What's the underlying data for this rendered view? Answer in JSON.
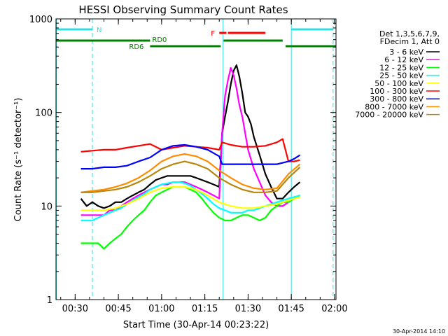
{
  "chart_data": {
    "type": "line",
    "title": "HESSI Observing Summary Count Rates",
    "xlabel": "Start Time (30-Apr-14 00:23:22)",
    "ylabel": "Count Rate (s⁻¹ detector⁻¹)",
    "y_scale": "log",
    "ylim": [
      1,
      1000
    ],
    "xlim": [
      "00:23:22",
      "02:00:30"
    ],
    "x_ticks": [
      "00:30",
      "00:45",
      "01:00",
      "01:15",
      "01:30",
      "01:45",
      "02:00"
    ],
    "y_ticks": [
      "1",
      "10",
      "100",
      "1000"
    ],
    "grid": false,
    "legend_position": "right",
    "legend_header": [
      "Det 1,3,5,6,7,9,",
      "FDecim 1, Att 0"
    ],
    "footer": "30-Apr-2014 14:10",
    "annotations": {
      "night_label": "N",
      "flare_label": "F",
      "rd0_label": "RD0",
      "rd6_label": "RD6"
    },
    "markers": {
      "night_intervals": [
        [
          "00:23:22",
          "00:36:00"
        ],
        [
          "01:45:00",
          "01:59:30"
        ]
      ],
      "night_dashed_lines": [
        "00:36:00",
        "01:59:30"
      ],
      "saa_lines": [
        "00:23:30",
        "01:21:20",
        "01:45:00"
      ],
      "flare_interval": [
        "01:20:00",
        "01:22:30"
      ],
      "flare_interval_2": [
        "01:23:00",
        "01:36:00"
      ],
      "rd0_intervals": [
        [
          "00:23:22",
          "00:56:00"
        ],
        [
          "01:21:30",
          "01:42:00"
        ]
      ],
      "rd6_intervals": [
        [
          "00:56:00",
          "01:20:30"
        ],
        [
          "01:43:00",
          "02:00:30"
        ]
      ]
    },
    "series": [
      {
        "name": "3 - 6 keV",
        "color": "#000000",
        "x": [
          "00:32",
          "00:34",
          "00:36",
          "00:38",
          "00:40",
          "00:42",
          "00:44",
          "00:46",
          "00:48",
          "00:50",
          "00:52",
          "00:54",
          "00:56",
          "00:58",
          "01:00",
          "01:02",
          "01:04",
          "01:06",
          "01:08",
          "01:10",
          "01:12",
          "01:14",
          "01:16",
          "01:18",
          "01:20",
          "01:21",
          "01:22",
          "01:23",
          "01:24",
          "01:25",
          "01:26",
          "01:27",
          "01:28",
          "01:29",
          "01:30",
          "01:31",
          "01:32",
          "01:34",
          "01:36",
          "01:38",
          "01:40",
          "01:42",
          "01:44",
          "01:46",
          "01:48"
        ],
        "values": [
          12,
          10,
          11,
          10,
          9.5,
          10,
          11,
          11,
          12,
          13,
          14,
          15,
          17,
          19,
          20,
          21,
          21,
          21,
          21,
          21,
          20,
          19,
          18,
          17,
          16,
          60,
          90,
          130,
          200,
          280,
          320,
          240,
          160,
          100,
          90,
          75,
          55,
          35,
          22,
          16,
          12,
          12,
          14,
          16,
          18
        ]
      },
      {
        "name": "6 - 12 keV",
        "color": "#ff00ff",
        "x": [
          "00:32",
          "00:34",
          "00:36",
          "00:38",
          "00:40",
          "00:42",
          "00:44",
          "00:46",
          "00:48",
          "00:50",
          "00:52",
          "00:54",
          "00:56",
          "00:58",
          "01:00",
          "01:02",
          "01:04",
          "01:06",
          "01:08",
          "01:10",
          "01:12",
          "01:14",
          "01:16",
          "01:18",
          "01:20",
          "01:21",
          "01:22",
          "01:23",
          "01:24",
          "01:25",
          "01:26",
          "01:27",
          "01:28",
          "01:29",
          "01:30",
          "01:32",
          "01:34",
          "01:36",
          "01:38",
          "01:40",
          "01:42",
          "01:44",
          "01:46",
          "01:48"
        ],
        "values": [
          8,
          8,
          8,
          8,
          8,
          9,
          9,
          10,
          11,
          12,
          13,
          14,
          15,
          16,
          17,
          17,
          18,
          18,
          18,
          17,
          16,
          15,
          14,
          13,
          12,
          60,
          150,
          220,
          300,
          250,
          180,
          120,
          90,
          60,
          40,
          25,
          18,
          13,
          11,
          10,
          10,
          11,
          12,
          13
        ]
      },
      {
        "name": "12 - 25 keV",
        "color": "#00ff00",
        "x": [
          "00:32",
          "00:34",
          "00:36",
          "00:38",
          "00:40",
          "00:42",
          "00:44",
          "00:46",
          "00:48",
          "00:50",
          "00:52",
          "00:54",
          "00:56",
          "00:58",
          "01:00",
          "01:02",
          "01:04",
          "01:06",
          "01:08",
          "01:10",
          "01:12",
          "01:14",
          "01:16",
          "01:18",
          "01:20",
          "01:22",
          "01:24",
          "01:26",
          "01:28",
          "01:30",
          "01:32",
          "01:34",
          "01:36",
          "01:38",
          "01:40",
          "01:42",
          "01:44",
          "01:46",
          "01:48"
        ],
        "values": [
          4,
          4,
          4,
          4,
          3.5,
          4,
          4.5,
          5,
          6,
          7,
          8,
          9,
          11,
          13,
          14,
          15,
          16,
          16,
          16,
          15,
          14,
          12,
          10,
          8.5,
          7.5,
          7,
          7,
          7.5,
          8,
          8,
          7.5,
          7,
          7.5,
          9,
          10,
          11,
          11,
          12,
          13
        ]
      },
      {
        "name": "25 - 50 keV",
        "color": "#00ffff",
        "x": [
          "00:32",
          "00:34",
          "00:36",
          "00:38",
          "00:40",
          "00:42",
          "00:44",
          "00:46",
          "00:48",
          "00:50",
          "00:52",
          "00:54",
          "00:56",
          "00:58",
          "01:00",
          "01:02",
          "01:04",
          "01:06",
          "01:08",
          "01:10",
          "01:12",
          "01:14",
          "01:16",
          "01:18",
          "01:20",
          "01:22",
          "01:24",
          "01:26",
          "01:28",
          "01:30",
          "01:32",
          "01:34",
          "01:36",
          "01:38",
          "01:40",
          "01:42",
          "01:44",
          "01:46",
          "01:48"
        ],
        "values": [
          7,
          7,
          7,
          7.5,
          8,
          8.5,
          9,
          9.5,
          10.5,
          11.5,
          12.5,
          13.5,
          15,
          16,
          17,
          17.5,
          18,
          18,
          17.5,
          16.5,
          15,
          13.5,
          12,
          10.5,
          9.5,
          9,
          8.5,
          8.5,
          8.5,
          9,
          9,
          9.5,
          10,
          10.5,
          11,
          11.5,
          12,
          12.5,
          13
        ]
      },
      {
        "name": "50 - 100 keV",
        "color": "#ffff00",
        "x": [
          "00:32",
          "00:36",
          "00:40",
          "00:44",
          "00:48",
          "00:52",
          "00:56",
          "01:00",
          "01:04",
          "01:08",
          "01:12",
          "01:16",
          "01:20",
          "01:24",
          "01:28",
          "01:32",
          "01:36",
          "01:40",
          "01:44",
          "01:48"
        ],
        "values": [
          9,
          9,
          9,
          9.5,
          10.5,
          12,
          14,
          15.5,
          16,
          16,
          15,
          13,
          11,
          10,
          9.5,
          9.5,
          10,
          10.5,
          11.5,
          12.5
        ]
      },
      {
        "name": "100 - 300 keV",
        "color": "#ff0000",
        "x": [
          "00:32",
          "00:36",
          "00:40",
          "00:44",
          "00:48",
          "00:52",
          "00:56",
          "01:00",
          "01:04",
          "01:08",
          "01:12",
          "01:16",
          "01:20",
          "01:21",
          "01:24",
          "01:28",
          "01:32",
          "01:36",
          "01:40",
          "01:42",
          "01:44",
          "01:46",
          "01:48"
        ],
        "values": [
          38,
          39,
          40,
          40,
          42,
          44,
          46,
          40,
          42,
          44,
          43,
          42,
          40,
          48,
          45,
          43,
          43,
          44,
          48,
          52,
          30,
          30,
          31
        ]
      },
      {
        "name": "300 - 800 keV",
        "color": "#0000ff",
        "x": [
          "00:32",
          "00:36",
          "00:40",
          "00:44",
          "00:48",
          "00:52",
          "00:56",
          "01:00",
          "01:04",
          "01:08",
          "01:12",
          "01:16",
          "01:20",
          "01:21",
          "01:24",
          "01:28",
          "01:32",
          "01:36",
          "01:40",
          "01:44",
          "01:46",
          "01:48"
        ],
        "values": [
          25,
          25,
          26,
          26,
          27,
          30,
          33,
          40,
          44,
          45,
          43,
          40,
          34,
          28,
          28,
          28,
          28,
          28,
          28,
          30,
          32,
          35
        ]
      },
      {
        "name": "800 - 7000 keV",
        "color": "#ff8c00",
        "x": [
          "00:32",
          "00:36",
          "00:40",
          "00:44",
          "00:48",
          "00:52",
          "00:56",
          "01:00",
          "01:04",
          "01:08",
          "01:12",
          "01:16",
          "01:20",
          "01:24",
          "01:28",
          "01:32",
          "01:36",
          "01:40",
          "01:44",
          "01:48"
        ],
        "values": [
          14,
          14.5,
          15,
          16,
          17.5,
          20,
          24,
          30,
          34,
          36,
          34,
          30,
          24,
          20,
          17,
          15.5,
          15,
          15.5,
          22,
          28
        ]
      },
      {
        "name": "7000 - 20000 keV",
        "color": "#b8860b",
        "x": [
          "00:32",
          "00:36",
          "00:40",
          "00:44",
          "00:48",
          "00:52",
          "00:56",
          "01:00",
          "01:04",
          "01:08",
          "01:12",
          "01:16",
          "01:20",
          "01:24",
          "01:28",
          "01:32",
          "01:36",
          "01:40",
          "01:44",
          "01:48"
        ],
        "values": [
          14,
          14,
          14.5,
          15,
          16,
          18,
          21,
          25,
          28,
          30,
          28,
          25,
          20,
          17,
          15,
          14,
          14,
          14.5,
          20,
          26
        ]
      }
    ]
  }
}
